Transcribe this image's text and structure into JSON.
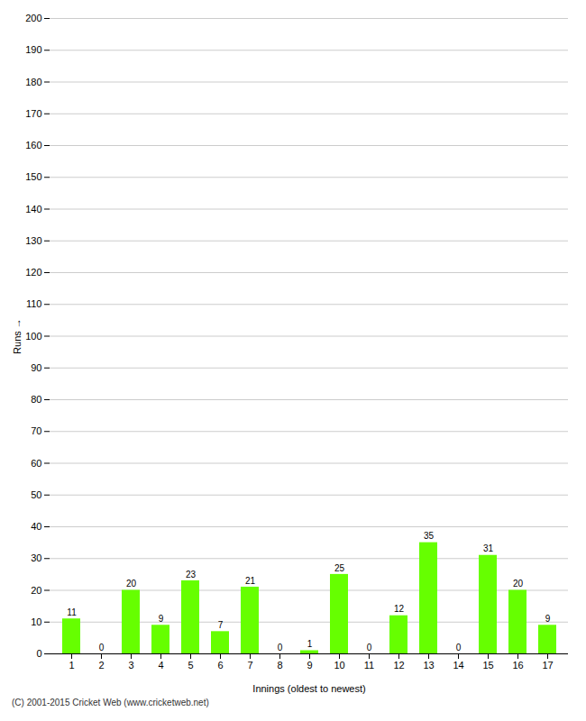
{
  "chart_data": {
    "type": "bar",
    "categories": [
      1,
      2,
      3,
      4,
      5,
      6,
      7,
      8,
      9,
      10,
      11,
      12,
      13,
      14,
      15,
      16,
      17
    ],
    "values": [
      11,
      0,
      20,
      9,
      23,
      7,
      21,
      0,
      1,
      25,
      0,
      12,
      35,
      0,
      31,
      20,
      9
    ],
    "color": "#66ff00",
    "xlabel": "Innings (oldest to newest)",
    "ylabel": "Runs",
    "ylim": [
      0,
      200
    ],
    "yticks": [
      0,
      10,
      20,
      30,
      40,
      50,
      60,
      70,
      80,
      90,
      100,
      110,
      120,
      130,
      140,
      150,
      160,
      170,
      180,
      190,
      200
    ],
    "grid": true,
    "data_labels": true,
    "footer": "(C) 2001-2015 Cricket Web (www.cricketweb.net)"
  }
}
